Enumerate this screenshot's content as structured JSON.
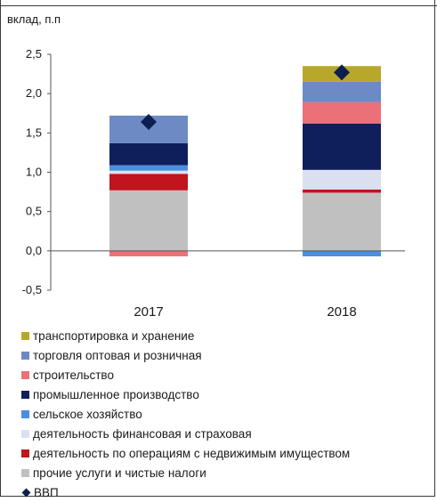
{
  "chart_data": {
    "type": "bar",
    "stacked": true,
    "ylabel": "вклад, п.п",
    "categories": [
      "2017",
      "2018"
    ],
    "ylim": [
      -0.5,
      2.5
    ],
    "yticks": [
      "-0,5",
      "0,0",
      "0,5",
      "1,0",
      "1,5",
      "2,0",
      "2,5"
    ],
    "ytick_values": [
      -0.5,
      0,
      0.5,
      1.0,
      1.5,
      2.0,
      2.5
    ],
    "grid": false,
    "legend_position": "bottom",
    "series": [
      {
        "name": "прочие услуги  и чистые налоги",
        "color": "#c0c0c0",
        "values": [
          0.77,
          0.74
        ]
      },
      {
        "name": "деятельность по операциям с недвижимым имуществом",
        "color": "#c0141e",
        "values": [
          0.21,
          0.04
        ]
      },
      {
        "name": "деятельность финансовая и страховая",
        "color": "#dbe0f1",
        "values": [
          0.04,
          0.25
        ]
      },
      {
        "name": "сельское хозяйство",
        "color": "#4a8fe0",
        "values": [
          0.07,
          -0.07
        ]
      },
      {
        "name": "промышленное производство",
        "color": "#0e1f5b",
        "values": [
          0.28,
          0.59
        ]
      },
      {
        "name": "строительство",
        "color": "#ec7077",
        "values": [
          -0.07,
          0.27
        ]
      },
      {
        "name": "торговля оптовая и розничная",
        "color": "#6d8ac5",
        "values": [
          0.35,
          0.26
        ]
      },
      {
        "name": "транспортировка и хранение",
        "color": "#b8a82a",
        "values": [
          0.0,
          0.2
        ]
      }
    ],
    "markers": {
      "name": "ВВП",
      "color": "#0d1f4f",
      "values": [
        1.64,
        2.27
      ]
    },
    "legend_order": [
      "транспортировка и хранение",
      "торговля оптовая и розничная",
      "строительство",
      "промышленное производство",
      "сельское хозяйство",
      "деятельность финансовая и страховая",
      "деятельность по операциям с недвижимым имуществом",
      "прочие услуги  и чистые налоги"
    ]
  }
}
